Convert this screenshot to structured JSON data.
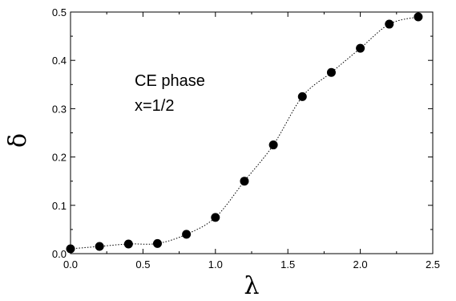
{
  "chart_data": {
    "type": "scatter",
    "title": "",
    "xlabel": "λ",
    "ylabel": "δ",
    "xlim": [
      0.0,
      2.5
    ],
    "ylim": [
      0.0,
      0.5
    ],
    "x_ticks": [
      "0.0",
      "0.5",
      "1.0",
      "1.5",
      "2.0",
      "2.5"
    ],
    "y_ticks": [
      "0.0",
      "0.1",
      "0.2",
      "0.3",
      "0.4",
      "0.5"
    ],
    "annotations": [
      "CE phase",
      "x=1/2"
    ],
    "grid": false,
    "legend": "none",
    "series": [
      {
        "marker": "filled-circle",
        "line": "dotted",
        "color": "#000000",
        "x": [
          0.0,
          0.2,
          0.4,
          0.6,
          0.8,
          1.0,
          1.2,
          1.4,
          1.6,
          1.8,
          2.0,
          2.2,
          2.4
        ],
        "y": [
          0.01,
          0.015,
          0.02,
          0.021,
          0.04,
          0.075,
          0.15,
          0.225,
          0.325,
          0.375,
          0.425,
          0.475,
          0.49
        ]
      }
    ]
  }
}
